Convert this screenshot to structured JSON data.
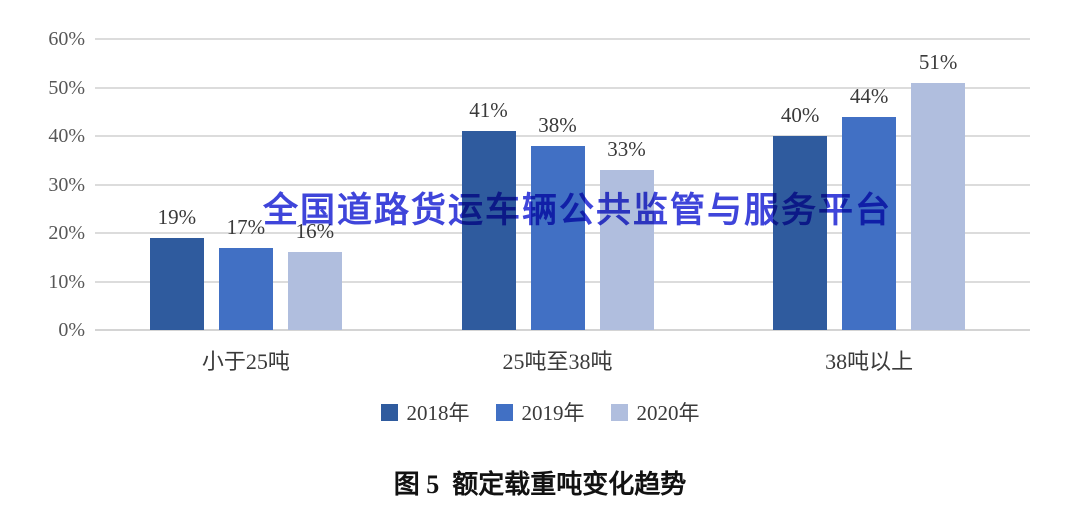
{
  "chart_data": {
    "type": "bar",
    "categories": [
      "小于25吨",
      "25吨至38吨",
      "38吨以上"
    ],
    "series": [
      {
        "name": "2018年",
        "color": "#2f5b9e",
        "values": [
          19,
          41,
          40
        ]
      },
      {
        "name": "2019年",
        "color": "#4170c4",
        "values": [
          17,
          38,
          44
        ]
      },
      {
        "name": "2020年",
        "color": "#b0bede",
        "values": [
          16,
          33,
          51
        ]
      }
    ],
    "value_suffix": "%",
    "y_ticks": [
      "0%",
      "10%",
      "20%",
      "30%",
      "40%",
      "50%",
      "60%"
    ],
    "ylim": [
      0,
      60
    ],
    "y_tick_step": 10,
    "grid": true,
    "gridline_color": "#dcdcdc",
    "legend_position": "bottom"
  },
  "watermark": {
    "text": "全国道路货运车辆公共监管与服务平台",
    "color": "#3f45da"
  },
  "caption": {
    "text": "图 5  额定载重吨变化趋势"
  }
}
